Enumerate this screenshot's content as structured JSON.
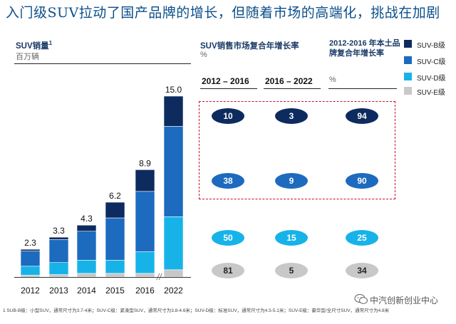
{
  "title": "入门级SUV拉动了国产品牌的增长，但随着市场的高端化，挑战在加剧",
  "left_panel": {
    "title": "SUV销量",
    "title_sup": "1",
    "unit": "百万辆"
  },
  "cagr_header": {
    "title": "SUV销售市场复合年增长率",
    "unit": "%"
  },
  "domestic_header": {
    "title": "2012-2016 年本土品牌复合年增长率",
    "unit": "%"
  },
  "columns": [
    "2012 – 2016",
    "2016 – 2022"
  ],
  "colors": {
    "suv_b": "#0d2b5e",
    "suv_c": "#1c6bbf",
    "suv_d": "#17b3e8",
    "suv_e": "#c8c8c8",
    "highlight": "#c8102e"
  },
  "axis_break_symbol": "//",
  "chart_data": {
    "type": "bar",
    "stacked": true,
    "title": "SUV销量",
    "unit": "百万辆",
    "categories": [
      "2012",
      "2013",
      "2014",
      "2015",
      "2016",
      "2022"
    ],
    "totals": [
      "2.3",
      "3.3",
      "4.3",
      "6.2",
      "8.9",
      "15.0"
    ],
    "ylim": [
      0,
      15.0
    ],
    "series": [
      {
        "name": "SUV-B级",
        "color": "#0d2b5e",
        "values": [
          0.15,
          0.2,
          0.5,
          1.3,
          1.8,
          2.5
        ]
      },
      {
        "name": "SUV-C级",
        "color": "#1c6bbf",
        "values": [
          1.25,
          1.9,
          2.4,
          3.5,
          5.0,
          7.5
        ]
      },
      {
        "name": "SUV-D级",
        "color": "#17b3e8",
        "values": [
          0.75,
          1.0,
          1.1,
          1.1,
          1.8,
          4.4
        ]
      },
      {
        "name": "SUV-E级",
        "color": "#c8c8c8",
        "values": [
          0.15,
          0.2,
          0.3,
          0.3,
          0.3,
          0.6
        ]
      }
    ],
    "legend_position": "right"
  },
  "growth_table": {
    "rows": [
      {
        "segment": "SUV-B级",
        "values": [
          "10",
          "3",
          "94"
        ]
      },
      {
        "segment": "SUV-C级",
        "values": [
          "38",
          "9",
          "90"
        ]
      },
      {
        "segment": "SUV-D级",
        "values": [
          "50",
          "15",
          "25"
        ]
      },
      {
        "segment": "SUV-E级",
        "values": [
          "81",
          "5",
          "34"
        ]
      }
    ]
  },
  "footnote": "1 SUB-B级：小型SUV，通常尺寸为3.7-4米；SUV-C级：紧凑型SUV，通常尺寸为3.8-4.6米；SUV-D级：标准SUV，通常尺寸为4.5-5.1米；SUV-E级：豪华型/全尺寸SUV，通常尺寸为4.8米",
  "watermark": "中汽创新创业中心"
}
